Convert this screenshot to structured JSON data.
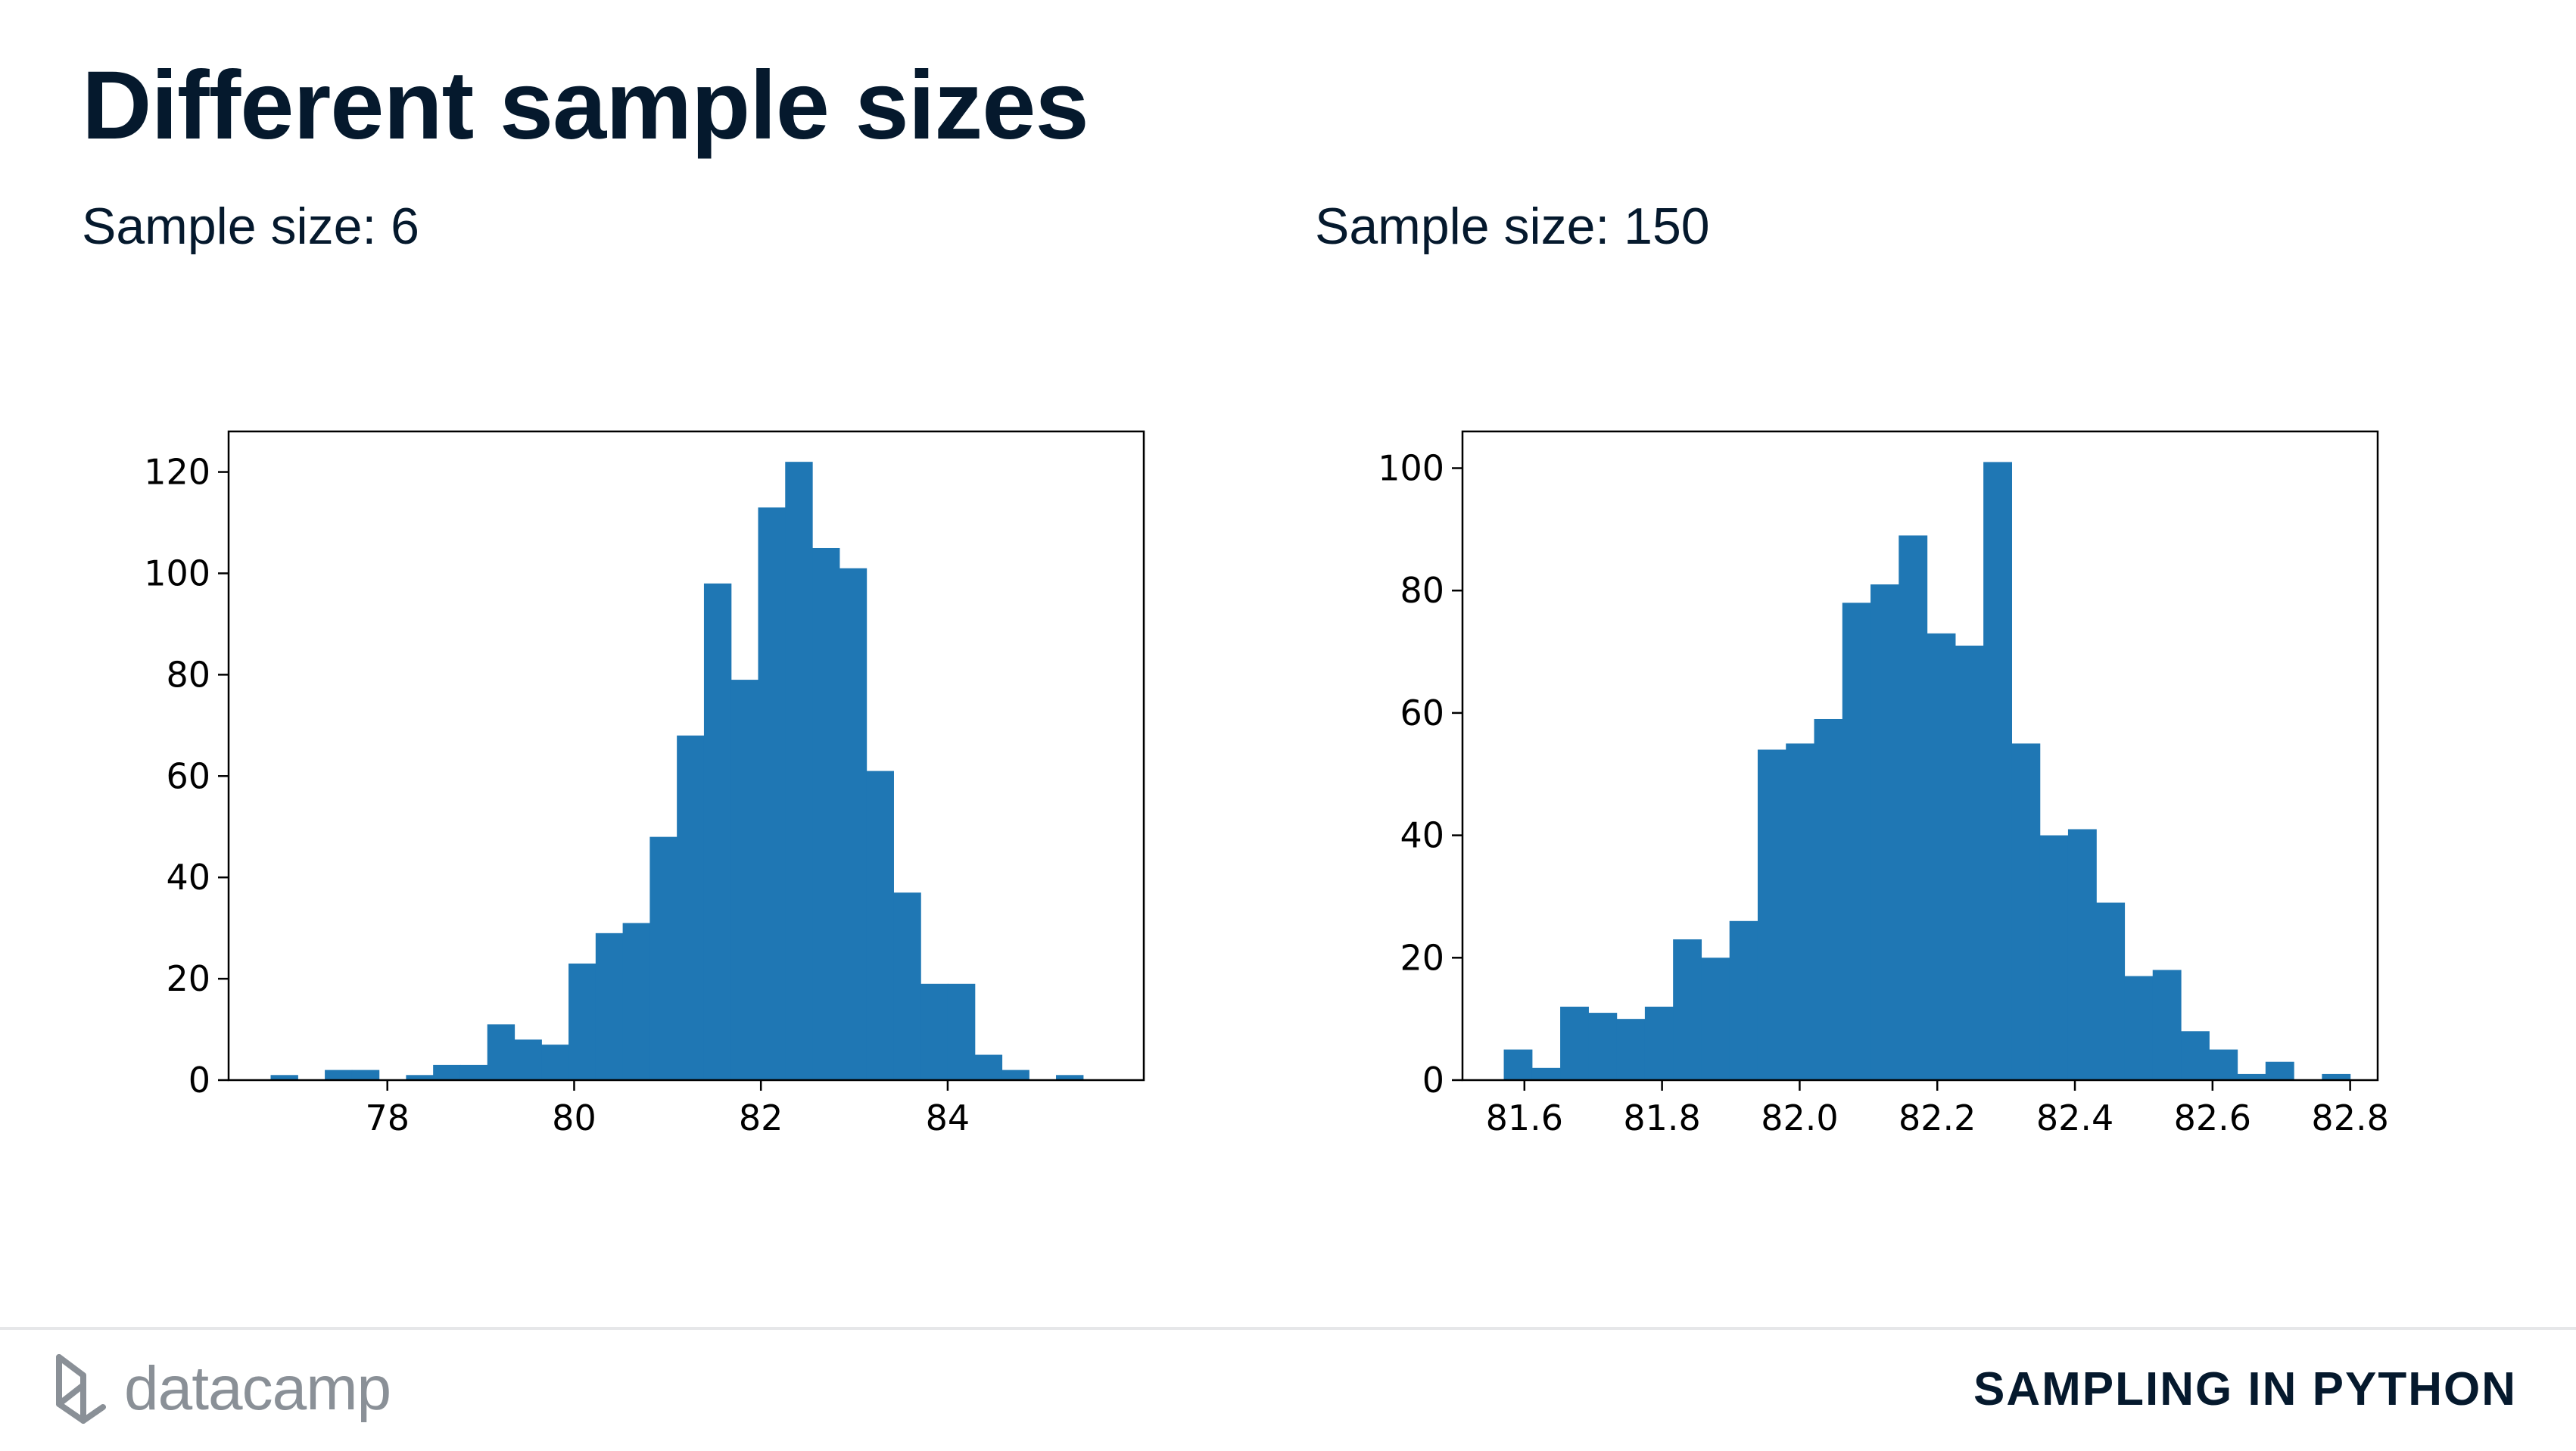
{
  "slide": {
    "title": "Different sample sizes",
    "course": "SAMPLING IN PYTHON",
    "brand": "datacamp",
    "brand_icon": "datacamp-logo-icon"
  },
  "chart_data": [
    {
      "type": "bar",
      "subtitle": "Sample size: 6",
      "color": "#1f77b4",
      "xlim": [
        76.3,
        86.1
      ],
      "ylim": [
        0,
        128
      ],
      "xticks": [
        78,
        80,
        82,
        84
      ],
      "xtick_labels": [
        "78",
        "80",
        "82",
        "84"
      ],
      "yticks": [
        0,
        20,
        40,
        60,
        80,
        100,
        120
      ],
      "ytick_labels": [
        "0",
        "20",
        "40",
        "60",
        "80",
        "100",
        "120"
      ],
      "bin_start": 76.75,
      "bin_width": 0.29,
      "values": [
        1,
        0,
        2,
        2,
        0,
        1,
        3,
        3,
        11,
        8,
        7,
        23,
        29,
        31,
        48,
        68,
        98,
        79,
        113,
        122,
        105,
        101,
        61,
        37,
        19,
        19,
        5,
        2,
        0,
        1
      ]
    },
    {
      "type": "bar",
      "subtitle": "Sample size: 150",
      "color": "#1f77b4",
      "xlim": [
        81.51,
        82.84
      ],
      "ylim": [
        0,
        106
      ],
      "xticks": [
        81.6,
        81.8,
        82.0,
        82.2,
        82.4,
        82.6,
        82.8
      ],
      "xtick_labels": [
        "81.6",
        "81.8",
        "82.0",
        "82.2",
        "82.4",
        "82.6",
        "82.8"
      ],
      "yticks": [
        0,
        20,
        40,
        60,
        80,
        100
      ],
      "ytick_labels": [
        "0",
        "20",
        "40",
        "60",
        "80",
        "100"
      ],
      "bin_start": 81.57,
      "bin_width": 0.041,
      "values": [
        5,
        2,
        12,
        11,
        10,
        12,
        23,
        20,
        26,
        54,
        55,
        59,
        78,
        81,
        89,
        73,
        71,
        101,
        55,
        40,
        41,
        29,
        17,
        18,
        8,
        5,
        1,
        3,
        0,
        1
      ]
    }
  ]
}
